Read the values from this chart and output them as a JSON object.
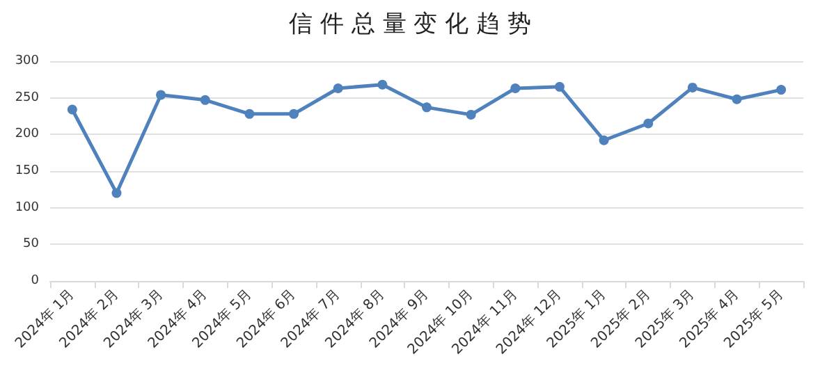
{
  "chart_data": {
    "type": "line",
    "title": "信 件 总 量 变 化 趋 势",
    "categories": [
      "2024年 1月",
      "2024年 2月",
      "2024年 3月",
      "2024年 4月",
      "2024年 5月",
      "2024年 6月",
      "2024年 7月",
      "2024年 8月",
      "2024年 9月",
      "2024年 10月",
      "2024年 11月",
      "2024年 12月",
      "2025年 1月",
      "2025年 2月",
      "2025年 3月",
      "2025年 4月",
      "2025年 5月"
    ],
    "series": [
      {
        "color": "#4f81bd",
        "values": [
          234,
          120,
          254,
          247,
          228,
          228,
          263,
          268,
          237,
          227,
          263,
          265,
          192,
          215,
          264,
          248,
          261
        ]
      }
    ],
    "ylim": [
      0,
      300
    ],
    "yticks": [
      0,
      50,
      100,
      150,
      200,
      250,
      300
    ],
    "grid": "y",
    "marker": "circle",
    "line_style": "solid"
  }
}
